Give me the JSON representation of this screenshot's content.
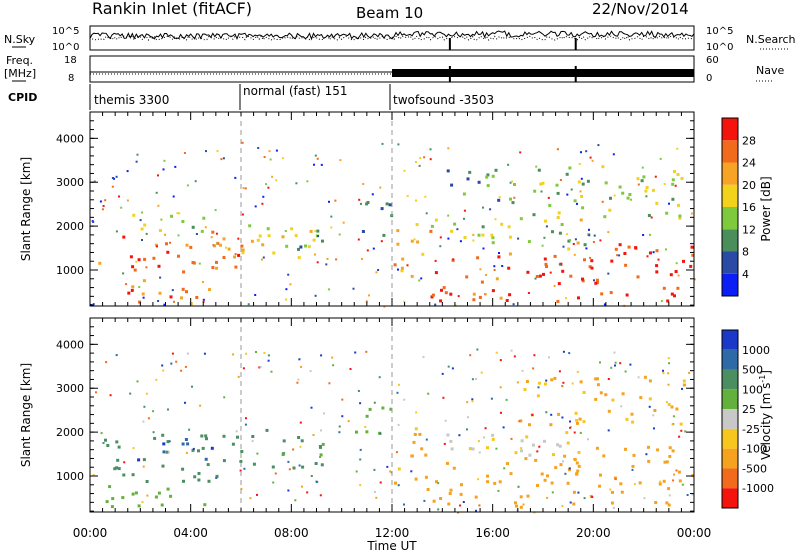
{
  "header": {
    "title": "Rankin Inlet (fitACF)",
    "beam": "Beam 10",
    "date": "22/Nov/2014"
  },
  "panels": {
    "nsky": {
      "left_label": "N.Sky",
      "right_label": "N.Search",
      "ticks_left": [
        "10^5",
        "10^0"
      ],
      "ticks_right": [
        "10^5",
        "10^0"
      ]
    },
    "freq": {
      "left_label_1": "Freq.",
      "left_label_2": "[MHz]",
      "right_label": "Nave",
      "ticks_left": [
        "18",
        "8"
      ],
      "ticks_right": [
        "60",
        "0"
      ]
    },
    "cpid": {
      "label": "CPID",
      "modes": [
        "themis 3300",
        "normal (fast) 151",
        "twofsound -3503"
      ]
    }
  },
  "colors": {
    "power": [
      "#0b1ef5",
      "#2a4aa6",
      "#4a8e5b",
      "#7fc93d",
      "#f2d21b",
      "#f7a326",
      "#f26a1b",
      "#f5140d"
    ],
    "velocity": [
      "#1b39c9",
      "#2e6aa8",
      "#4b8e62",
      "#63b13c",
      "#c8c8c8",
      "#f7c71f",
      "#f5a21e",
      "#f26a1b",
      "#f5140d"
    ]
  },
  "chart_data": [
    {
      "type": "heatmap",
      "title": "Power",
      "xlabel": "Time UT",
      "ylabel": "Slant Range [km]",
      "x_ticks": [
        "00:00",
        "04:00",
        "08:00",
        "12:00",
        "16:00",
        "20:00",
        "00:00"
      ],
      "y_ticks": [
        "1000",
        "2000",
        "3000",
        "4000"
      ],
      "ylim": [
        180,
        4600
      ],
      "xlim_hours": [
        0,
        24
      ],
      "colorbar": {
        "label": "Power [dB]",
        "ticks": [
          "4",
          "8",
          "12",
          "16",
          "20",
          "24",
          "28"
        ],
        "range": [
          0,
          32
        ]
      },
      "blobs": [
        {
          "t0": 0.3,
          "t1": 6.0,
          "r0": 900,
          "r1": 1900,
          "v": 26
        },
        {
          "t0": 6.0,
          "t1": 9.3,
          "r0": 1200,
          "r1": 2100,
          "v": 18
        },
        {
          "t0": 7.5,
          "t1": 9.6,
          "r0": 1500,
          "r1": 2100,
          "v": 10
        },
        {
          "t0": 0.5,
          "t1": 5.0,
          "r0": 250,
          "r1": 800,
          "v": 24
        },
        {
          "t0": 0.5,
          "t1": 4.5,
          "r0": 1900,
          "r1": 2300,
          "v": 14
        },
        {
          "t0": 10.5,
          "t1": 12.0,
          "r0": 1800,
          "r1": 2700,
          "v": 8
        },
        {
          "t0": 12.0,
          "t1": 13.5,
          "r0": 800,
          "r1": 2200,
          "v": 22
        },
        {
          "t0": 13.5,
          "t1": 20.0,
          "r0": 300,
          "r1": 1500,
          "v": 28
        },
        {
          "t0": 13.5,
          "t1": 20.0,
          "r0": 1500,
          "r1": 2200,
          "v": 16
        },
        {
          "t0": 20.0,
          "t1": 23.9,
          "r0": 300,
          "r1": 1700,
          "v": 29
        },
        {
          "t0": 17.0,
          "t1": 23.9,
          "r0": 2200,
          "r1": 3400,
          "v": 14
        },
        {
          "t0": 14.0,
          "t1": 17.0,
          "r0": 2500,
          "r1": 3400,
          "v": 12
        }
      ]
    },
    {
      "type": "heatmap",
      "title": "Velocity",
      "xlabel": "Time UT",
      "ylabel": "Slant Range [km]",
      "x_ticks": [
        "00:00",
        "04:00",
        "08:00",
        "12:00",
        "16:00",
        "20:00",
        "00:00"
      ],
      "y_ticks": [
        "1000",
        "2000",
        "3000",
        "4000"
      ],
      "ylim": [
        180,
        4600
      ],
      "xlim_hours": [
        0,
        24
      ],
      "colorbar": {
        "label": "Velocity [m s^-1]",
        "ticks": [
          "1000",
          "500",
          "100",
          "25",
          "-25",
          "-100",
          "-500",
          "-1000"
        ]
      },
      "blobs": [
        {
          "t0": 0.3,
          "t1": 6.0,
          "r0": 900,
          "r1": 2000,
          "v": 300
        },
        {
          "t0": 1.5,
          "t1": 5.0,
          "r0": 1400,
          "r1": 1900,
          "v": 800
        },
        {
          "t0": 6.0,
          "t1": 9.3,
          "r0": 1200,
          "r1": 2100,
          "v": 150
        },
        {
          "t0": 0.5,
          "t1": 5.0,
          "r0": 250,
          "r1": 800,
          "v": 60
        },
        {
          "t0": 10.5,
          "t1": 12.0,
          "r0": 1800,
          "r1": 2600,
          "v": 60
        },
        {
          "t0": 12.0,
          "t1": 13.6,
          "r0": 700,
          "r1": 2200,
          "v": -150
        },
        {
          "t0": 13.6,
          "t1": 20.0,
          "r0": 300,
          "r1": 1500,
          "v": -200
        },
        {
          "t0": 13.6,
          "t1": 20.0,
          "r0": 1500,
          "r1": 2100,
          "v": -20
        },
        {
          "t0": 20.0,
          "t1": 23.9,
          "r0": 300,
          "r1": 1700,
          "v": -300
        },
        {
          "t0": 17.0,
          "t1": 23.9,
          "r0": 2200,
          "r1": 3300,
          "v": -120
        }
      ]
    }
  ]
}
